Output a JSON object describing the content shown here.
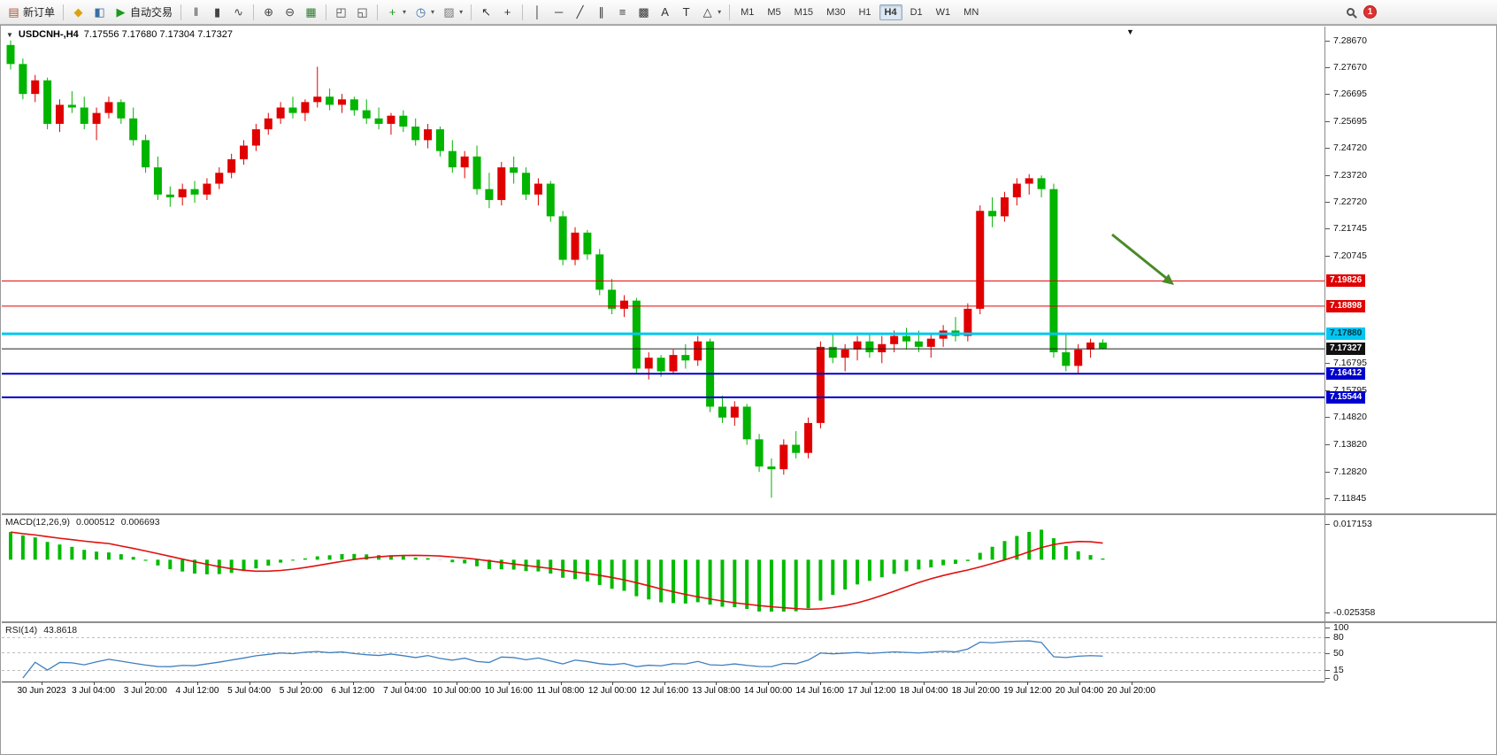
{
  "toolbar": {
    "groups": [
      {
        "items": [
          {
            "name": "new-order",
            "icon": "new-order-icon",
            "glyph": "▤",
            "color": "#a95336",
            "label": "新订单"
          }
        ]
      },
      {
        "items": [
          {
            "name": "metaeditor",
            "icon": "metaeditor-icon",
            "glyph": "◆",
            "color": "#dca213"
          },
          {
            "name": "data-window",
            "icon": "data-window-icon",
            "glyph": "◧",
            "color": "#3a6ea5"
          },
          {
            "name": "autotrading",
            "icon": "autotrading-icon",
            "glyph": "▶",
            "color": "#1a9a1a",
            "label": "自动交易"
          }
        ]
      },
      {
        "items": [
          {
            "name": "bar-chart-mode",
            "icon": "bar-chart-icon",
            "glyph": "‖",
            "color": "#444"
          },
          {
            "name": "candlestick-mode",
            "icon": "candlestick-icon",
            "glyph": "▮",
            "color": "#444"
          },
          {
            "name": "line-chart-mode",
            "icon": "line-chart-icon",
            "glyph": "∿",
            "color": "#444"
          }
        ]
      },
      {
        "items": [
          {
            "name": "zoom-in",
            "icon": "zoom-in-icon",
            "glyph": "⊕",
            "color": "#444"
          },
          {
            "name": "zoom-out",
            "icon": "zoom-out-icon",
            "glyph": "⊖",
            "color": "#444"
          },
          {
            "name": "tile-windows",
            "icon": "tile-windows-icon",
            "glyph": "▦",
            "color": "#2a7a2a"
          }
        ]
      },
      {
        "items": [
          {
            "name": "auto-arrange",
            "icon": "auto-arrange-icon",
            "glyph": "◰",
            "color": "#444"
          },
          {
            "name": "track-chart",
            "icon": "track-chart-icon",
            "glyph": "◱",
            "color": "#444"
          }
        ]
      },
      {
        "items": [
          {
            "name": "indicators",
            "icon": "indicators-icon",
            "glyph": "+",
            "color": "#1a9a1a",
            "caret": true
          },
          {
            "name": "periods",
            "icon": "clock-icon",
            "glyph": "◷",
            "color": "#3a6ea5",
            "caret": true
          },
          {
            "name": "templates",
            "icon": "template-icon",
            "glyph": "▨",
            "color": "#777",
            "caret": true
          }
        ]
      },
      {
        "items": [
          {
            "name": "cursor",
            "icon": "cursor-icon",
            "glyph": "↖",
            "color": "#333"
          },
          {
            "name": "crosshair",
            "icon": "crosshair-icon",
            "glyph": "+",
            "color": "#333"
          }
        ]
      },
      {
        "items": [
          {
            "name": "vertical-line",
            "icon": "vertical-line-icon",
            "glyph": "│",
            "color": "#333"
          },
          {
            "name": "horizontal-line",
            "icon": "horizontal-line-icon",
            "glyph": "─",
            "color": "#333"
          },
          {
            "name": "trendline",
            "icon": "trendline-icon",
            "glyph": "╱",
            "color": "#333"
          },
          {
            "name": "equidistant-channel",
            "icon": "channel-icon",
            "glyph": "∥",
            "color": "#333"
          },
          {
            "name": "fibonacci",
            "icon": "fibonacci-icon",
            "glyph": "≡",
            "color": "#333"
          },
          {
            "name": "grid",
            "icon": "grid-icon",
            "glyph": "▩",
            "color": "#333"
          },
          {
            "name": "text",
            "icon": "text-icon",
            "glyph": "A",
            "color": "#333"
          },
          {
            "name": "text-label",
            "icon": "text-label-icon",
            "glyph": "T",
            "color": "#333"
          },
          {
            "name": "shapes",
            "icon": "shapes-icon",
            "glyph": "△",
            "color": "#333",
            "caret": true
          }
        ]
      }
    ],
    "timeframes": [
      {
        "label": "M1"
      },
      {
        "label": "M5"
      },
      {
        "label": "M15"
      },
      {
        "label": "M30"
      },
      {
        "label": "H1"
      },
      {
        "label": "H4",
        "active": true
      },
      {
        "label": "D1"
      },
      {
        "label": "W1"
      },
      {
        "label": "MN"
      }
    ],
    "notification_count": "1"
  },
  "window": {
    "collapse_glyph": "▼",
    "symbol_period": "USDCNH-,H4",
    "ohlc": "7.17556 7.17680 7.17304 7.17327",
    "marker_glyph": "▼"
  },
  "chart_data": {
    "type": "candlestick",
    "symbol": "USDCNH",
    "period": "H4",
    "price_range": {
      "top": 7.2895,
      "bottom": 7.117
    },
    "colors": {
      "up": "#e00000",
      "down": "#00b400",
      "background": "#ffffff"
    },
    "price_axis_labels": [
      "7.28670",
      "7.27670",
      "7.26695",
      "7.25695",
      "7.24720",
      "7.23720",
      "7.22720",
      "7.21745",
      "7.20745",
      "7.16795",
      "7.15795",
      "7.14820",
      "7.13820",
      "7.12820",
      "7.11845"
    ],
    "time_labels": [
      "30 Jun 2023",
      "3 Jul 04:00",
      "3 Jul 20:00",
      "4 Jul 12:00",
      "5 Jul 04:00",
      "5 Jul 20:00",
      "6 Jul 12:00",
      "7 Jul 04:00",
      "10 Jul 00:00",
      "10 Jul 16:00",
      "11 Jul 08:00",
      "12 Jul 00:00",
      "12 Jul 16:00",
      "13 Jul 08:00",
      "14 Jul 00:00",
      "14 Jul 16:00",
      "17 Jul 12:00",
      "18 Jul 04:00",
      "18 Jul 20:00",
      "19 Jul 12:00",
      "20 Jul 04:00",
      "20 Jul 20:00"
    ],
    "hlines": [
      {
        "label": "7.19826",
        "price": 7.19826,
        "color": "#e00000",
        "width": 1,
        "text_color": "#ffffff"
      },
      {
        "label": "7.18898",
        "price": 7.18898,
        "color": "#e00000",
        "width": 1,
        "text_color": "#ffffff"
      },
      {
        "label": "7.17880",
        "price": 7.1788,
        "color": "#00c6f0",
        "width": 3,
        "text_color": "#003344"
      },
      {
        "label": "7.16412",
        "price": 7.16412,
        "color": "#0000cd",
        "width": 2,
        "text_color": "#ffffff"
      },
      {
        "label": "7.15544",
        "price": 7.15544,
        "color": "#0000cd",
        "width": 2,
        "text_color": "#ffffff"
      }
    ],
    "current_price": {
      "label": "7.17327",
      "price": 7.17327,
      "bg": "#111111",
      "text_color": "#ffffff"
    },
    "arrow_annotation": {
      "color": "#4a8a28"
    },
    "indicators": [
      {
        "name": "MACD(12,26,9)",
        "values": [
          "0.000512",
          "0.006693"
        ],
        "axis_labels": [
          "0.017153",
          "-0.025358"
        ],
        "histogram_color": "#00bb00",
        "signal_color": "#e01010",
        "params": {
          "fast": 12,
          "slow": 26,
          "signal": 9
        }
      },
      {
        "name": "RSI(14)",
        "values": [
          "43.8618"
        ],
        "axis_labels": [
          "100",
          "80",
          "50",
          "15",
          "0"
        ],
        "levels": [
          80,
          50,
          15
        ],
        "line_color": "#3f7fbf",
        "params": {
          "period": 14
        }
      }
    ],
    "candles": [
      [
        7.285,
        7.2867,
        7.276,
        7.278
      ],
      [
        7.278,
        7.28,
        7.265,
        7.267
      ],
      [
        7.267,
        7.274,
        7.264,
        7.272
      ],
      [
        7.272,
        7.273,
        7.254,
        7.256
      ],
      [
        7.256,
        7.265,
        7.253,
        7.263
      ],
      [
        7.263,
        7.268,
        7.26,
        7.262
      ],
      [
        7.262,
        7.266,
        7.254,
        7.256
      ],
      [
        7.256,
        7.262,
        7.25,
        7.26
      ],
      [
        7.26,
        7.266,
        7.258,
        7.264
      ],
      [
        7.264,
        7.265,
        7.256,
        7.258
      ],
      [
        7.258,
        7.262,
        7.248,
        7.25
      ],
      [
        7.25,
        7.252,
        7.238,
        7.24
      ],
      [
        7.24,
        7.244,
        7.228,
        7.23
      ],
      [
        7.23,
        7.233,
        7.2255,
        7.229
      ],
      [
        7.229,
        7.234,
        7.226,
        7.232
      ],
      [
        7.232,
        7.235,
        7.227,
        7.23
      ],
      [
        7.23,
        7.236,
        7.228,
        7.234
      ],
      [
        7.234,
        7.24,
        7.232,
        7.238
      ],
      [
        7.238,
        7.245,
        7.236,
        7.243
      ],
      [
        7.243,
        7.25,
        7.241,
        7.248
      ],
      [
        7.248,
        7.256,
        7.246,
        7.254
      ],
      [
        7.254,
        7.26,
        7.252,
        7.258
      ],
      [
        7.258,
        7.264,
        7.256,
        7.262
      ],
      [
        7.262,
        7.266,
        7.258,
        7.26
      ],
      [
        7.26,
        7.265,
        7.257,
        7.264
      ],
      [
        7.264,
        7.277,
        7.262,
        7.266
      ],
      [
        7.266,
        7.269,
        7.261,
        7.263
      ],
      [
        7.263,
        7.267,
        7.26,
        7.265
      ],
      [
        7.265,
        7.266,
        7.259,
        7.261
      ],
      [
        7.261,
        7.265,
        7.256,
        7.258
      ],
      [
        7.258,
        7.262,
        7.254,
        7.256
      ],
      [
        7.256,
        7.26,
        7.252,
        7.259
      ],
      [
        7.259,
        7.261,
        7.253,
        7.255
      ],
      [
        7.255,
        7.258,
        7.248,
        7.25
      ],
      [
        7.25,
        7.256,
        7.247,
        7.254
      ],
      [
        7.254,
        7.255,
        7.244,
        7.246
      ],
      [
        7.246,
        7.25,
        7.238,
        7.24
      ],
      [
        7.24,
        7.246,
        7.236,
        7.244
      ],
      [
        7.244,
        7.248,
        7.23,
        7.232
      ],
      [
        7.232,
        7.238,
        7.225,
        7.228
      ],
      [
        7.228,
        7.242,
        7.226,
        7.24
      ],
      [
        7.24,
        7.244,
        7.234,
        7.238
      ],
      [
        7.238,
        7.24,
        7.228,
        7.23
      ],
      [
        7.23,
        7.236,
        7.226,
        7.234
      ],
      [
        7.234,
        7.235,
        7.22,
        7.222
      ],
      [
        7.222,
        7.224,
        7.204,
        7.206
      ],
      [
        7.206,
        7.218,
        7.204,
        7.216
      ],
      [
        7.216,
        7.217,
        7.206,
        7.208
      ],
      [
        7.208,
        7.21,
        7.193,
        7.195
      ],
      [
        7.195,
        7.199,
        7.186,
        7.188
      ],
      [
        7.188,
        7.193,
        7.185,
        7.191
      ],
      [
        7.191,
        7.192,
        7.164,
        7.166
      ],
      [
        7.166,
        7.172,
        7.162,
        7.17
      ],
      [
        7.17,
        7.171,
        7.163,
        7.165
      ],
      [
        7.165,
        7.173,
        7.164,
        7.171
      ],
      [
        7.171,
        7.175,
        7.166,
        7.169
      ],
      [
        7.169,
        7.178,
        7.167,
        7.176
      ],
      [
        7.176,
        7.177,
        7.15,
        7.152
      ],
      [
        7.152,
        7.156,
        7.146,
        7.148
      ],
      [
        7.148,
        7.154,
        7.145,
        7.152
      ],
      [
        7.152,
        7.153,
        7.138,
        7.14
      ],
      [
        7.14,
        7.142,
        7.128,
        7.13
      ],
      [
        7.13,
        7.133,
        7.1185,
        7.129
      ],
      [
        7.129,
        7.14,
        7.127,
        7.138
      ],
      [
        7.138,
        7.143,
        7.133,
        7.135
      ],
      [
        7.135,
        7.148,
        7.133,
        7.146
      ],
      [
        7.146,
        7.176,
        7.144,
        7.174
      ],
      [
        7.174,
        7.179,
        7.168,
        7.17
      ],
      [
        7.17,
        7.175,
        7.165,
        7.173
      ],
      [
        7.173,
        7.178,
        7.169,
        7.176
      ],
      [
        7.176,
        7.179,
        7.17,
        7.172
      ],
      [
        7.172,
        7.178,
        7.168,
        7.175
      ],
      [
        7.175,
        7.18,
        7.172,
        7.178
      ],
      [
        7.178,
        7.181,
        7.173,
        7.176
      ],
      [
        7.176,
        7.18,
        7.172,
        7.174
      ],
      [
        7.174,
        7.179,
        7.17,
        7.177
      ],
      [
        7.177,
        7.182,
        7.174,
        7.18
      ],
      [
        7.18,
        7.185,
        7.176,
        7.178
      ],
      [
        7.178,
        7.19,
        7.176,
        7.188
      ],
      [
        7.188,
        7.226,
        7.186,
        7.224
      ],
      [
        7.224,
        7.229,
        7.218,
        7.222
      ],
      [
        7.222,
        7.231,
        7.22,
        7.229
      ],
      [
        7.229,
        7.236,
        7.226,
        7.234
      ],
      [
        7.234,
        7.2375,
        7.23,
        7.236
      ],
      [
        7.236,
        7.237,
        7.229,
        7.232
      ],
      [
        7.232,
        7.234,
        7.17,
        7.172
      ],
      [
        7.172,
        7.179,
        7.165,
        7.167
      ],
      [
        7.167,
        7.175,
        7.164,
        7.173
      ],
      [
        7.173,
        7.177,
        7.17,
        7.1756
      ],
      [
        7.17556,
        7.1768,
        7.17304,
        7.17327
      ]
    ]
  }
}
